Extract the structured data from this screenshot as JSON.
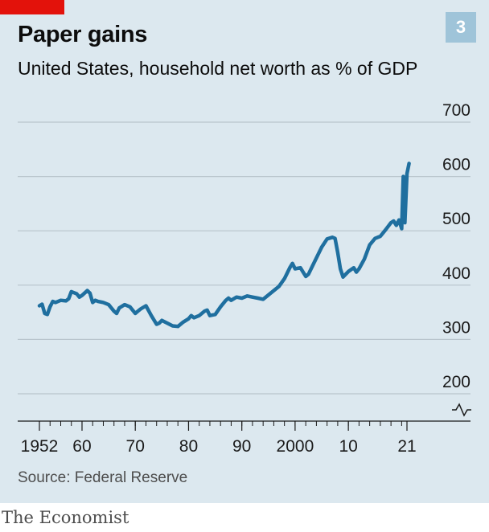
{
  "header": {
    "title": "Paper gains",
    "subtitle": "United States, household net worth as % of GDP",
    "badge": "3",
    "brand_color": "#e3120b"
  },
  "footer": {
    "source": "Source: Federal Reserve",
    "logo": "The Economist"
  },
  "chart_data": {
    "type": "line",
    "title": "Paper gains",
    "subtitle": "United States, household net worth as % of GDP",
    "y_ticks": [
      700,
      600,
      500,
      400,
      300,
      200
    ],
    "ylim": [
      200,
      700
    ],
    "y_axis_broken": true,
    "x_ticks": [
      {
        "year": 1952,
        "label": "1952"
      },
      {
        "year": 1960,
        "label": "60"
      },
      {
        "year": 1970,
        "label": "70"
      },
      {
        "year": 1980,
        "label": "80"
      },
      {
        "year": 1990,
        "label": "90"
      },
      {
        "year": 2000,
        "label": "2000"
      },
      {
        "year": 2010,
        "label": "10"
      },
      {
        "year": 2021,
        "label": "21"
      }
    ],
    "xlim": [
      1952,
      2021.5
    ],
    "grid": true,
    "line_color": "#1f6f9f",
    "grid_color": "#b8c4cc",
    "series": [
      {
        "x": [
          1952,
          1952.5,
          1953,
          1953.5,
          1954,
          1954.5,
          1955,
          1956,
          1957,
          1957.5,
          1958,
          1959,
          1959.5,
          1960,
          1961,
          1961.5,
          1962,
          1962.5,
          1963,
          1964,
          1965,
          1966,
          1966.5,
          1967,
          1968,
          1969,
          1970,
          1970.5,
          1971,
          1972,
          1973,
          1974,
          1974.5,
          1975,
          1976,
          1977,
          1978,
          1979,
          1980,
          1980.5,
          1981,
          1982,
          1983,
          1983.5,
          1984,
          1985,
          1986,
          1987,
          1987.5,
          1988,
          1989,
          1990,
          1991,
          1992,
          1993,
          1994,
          1995,
          1996,
          1997,
          1998,
          1999,
          1999.5,
          2000,
          2001,
          2002,
          2002.5,
          2003,
          2004,
          2005,
          2006,
          2007,
          2007.5,
          2008,
          2008.5,
          2009,
          2009.5,
          2010,
          2011,
          2011.5,
          2012,
          2013,
          2014,
          2015,
          2016,
          2017,
          2018,
          2018.5,
          2019,
          2019.5,
          2020,
          2020.3,
          2020.6,
          2021,
          2021.4
        ],
        "values": [
          362,
          365,
          348,
          346,
          360,
          370,
          368,
          372,
          371,
          375,
          388,
          384,
          378,
          381,
          390,
          385,
          368,
          372,
          370,
          368,
          364,
          352,
          348,
          358,
          364,
          360,
          348,
          352,
          356,
          362,
          344,
          328,
          330,
          335,
          330,
          325,
          324,
          332,
          338,
          344,
          340,
          344,
          352,
          354,
          344,
          346,
          360,
          372,
          376,
          372,
          378,
          376,
          380,
          378,
          376,
          374,
          382,
          390,
          398,
          412,
          432,
          440,
          430,
          432,
          416,
          420,
          430,
          450,
          470,
          485,
          488,
          486,
          460,
          430,
          415,
          420,
          425,
          432,
          424,
          430,
          448,
          474,
          486,
          490,
          502,
          515,
          518,
          510,
          520,
          504,
          600,
          515,
          605,
          624
        ]
      }
    ]
  }
}
